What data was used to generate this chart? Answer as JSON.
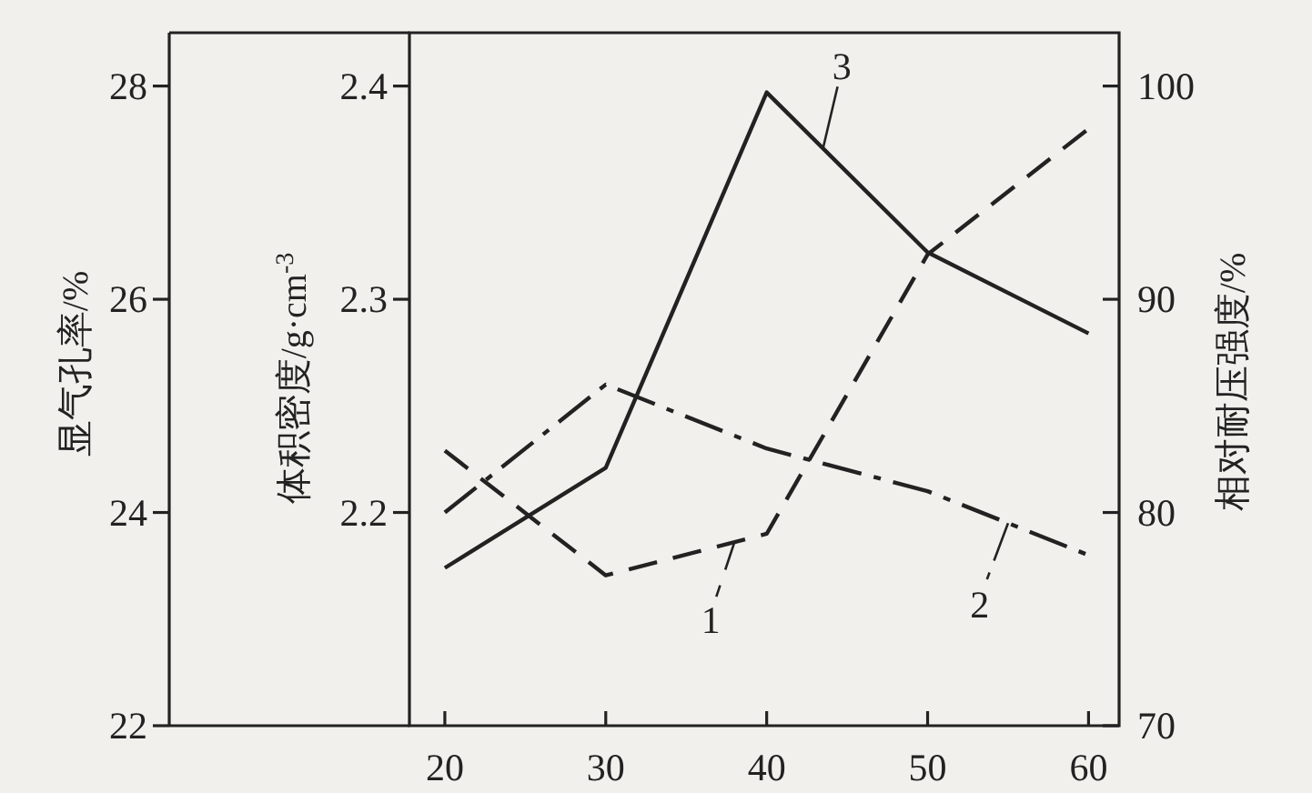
{
  "chart_data": {
    "type": "line",
    "x": [
      20,
      30,
      40,
      50,
      60
    ],
    "xlim": [
      17.8,
      61.9
    ],
    "xticks": [
      20,
      30,
      40,
      50,
      60
    ],
    "ylabel": "显气孔率/%",
    "ylim": [
      22,
      28.5
    ],
    "yticks": [
      22,
      24,
      26,
      28
    ],
    "y2label": "体积密度/g·cm$^{-3}$",
    "y2lim": [
      2.1,
      2.425
    ],
    "y2ticks": [
      2.2,
      2.3,
      2.4
    ],
    "y3label": "相对耐压强度/%",
    "y3lim": [
      70,
      102.5
    ],
    "y3ticks": [
      70,
      80,
      90,
      100
    ],
    "grid": false,
    "legend": "bottom",
    "marker": "none",
    "series": [
      {
        "name": "1",
        "color": "#222222",
        "line_style": "dashed",
        "values": [
          24.58,
          23.41,
          23.8,
          26.42,
          27.6
        ]
      },
      {
        "name": "2",
        "color": "#222222",
        "line_style": "dashdot",
        "axis": "y2",
        "values": [
          2.2,
          2.26,
          2.23,
          2.21,
          2.18
        ]
      },
      {
        "name": "3",
        "color": "#222222",
        "line_style": "solid",
        "axis": "y3",
        "values": [
          77.4,
          82.1,
          99.7,
          92.2,
          88.4
        ]
      }
    ]
  }
}
